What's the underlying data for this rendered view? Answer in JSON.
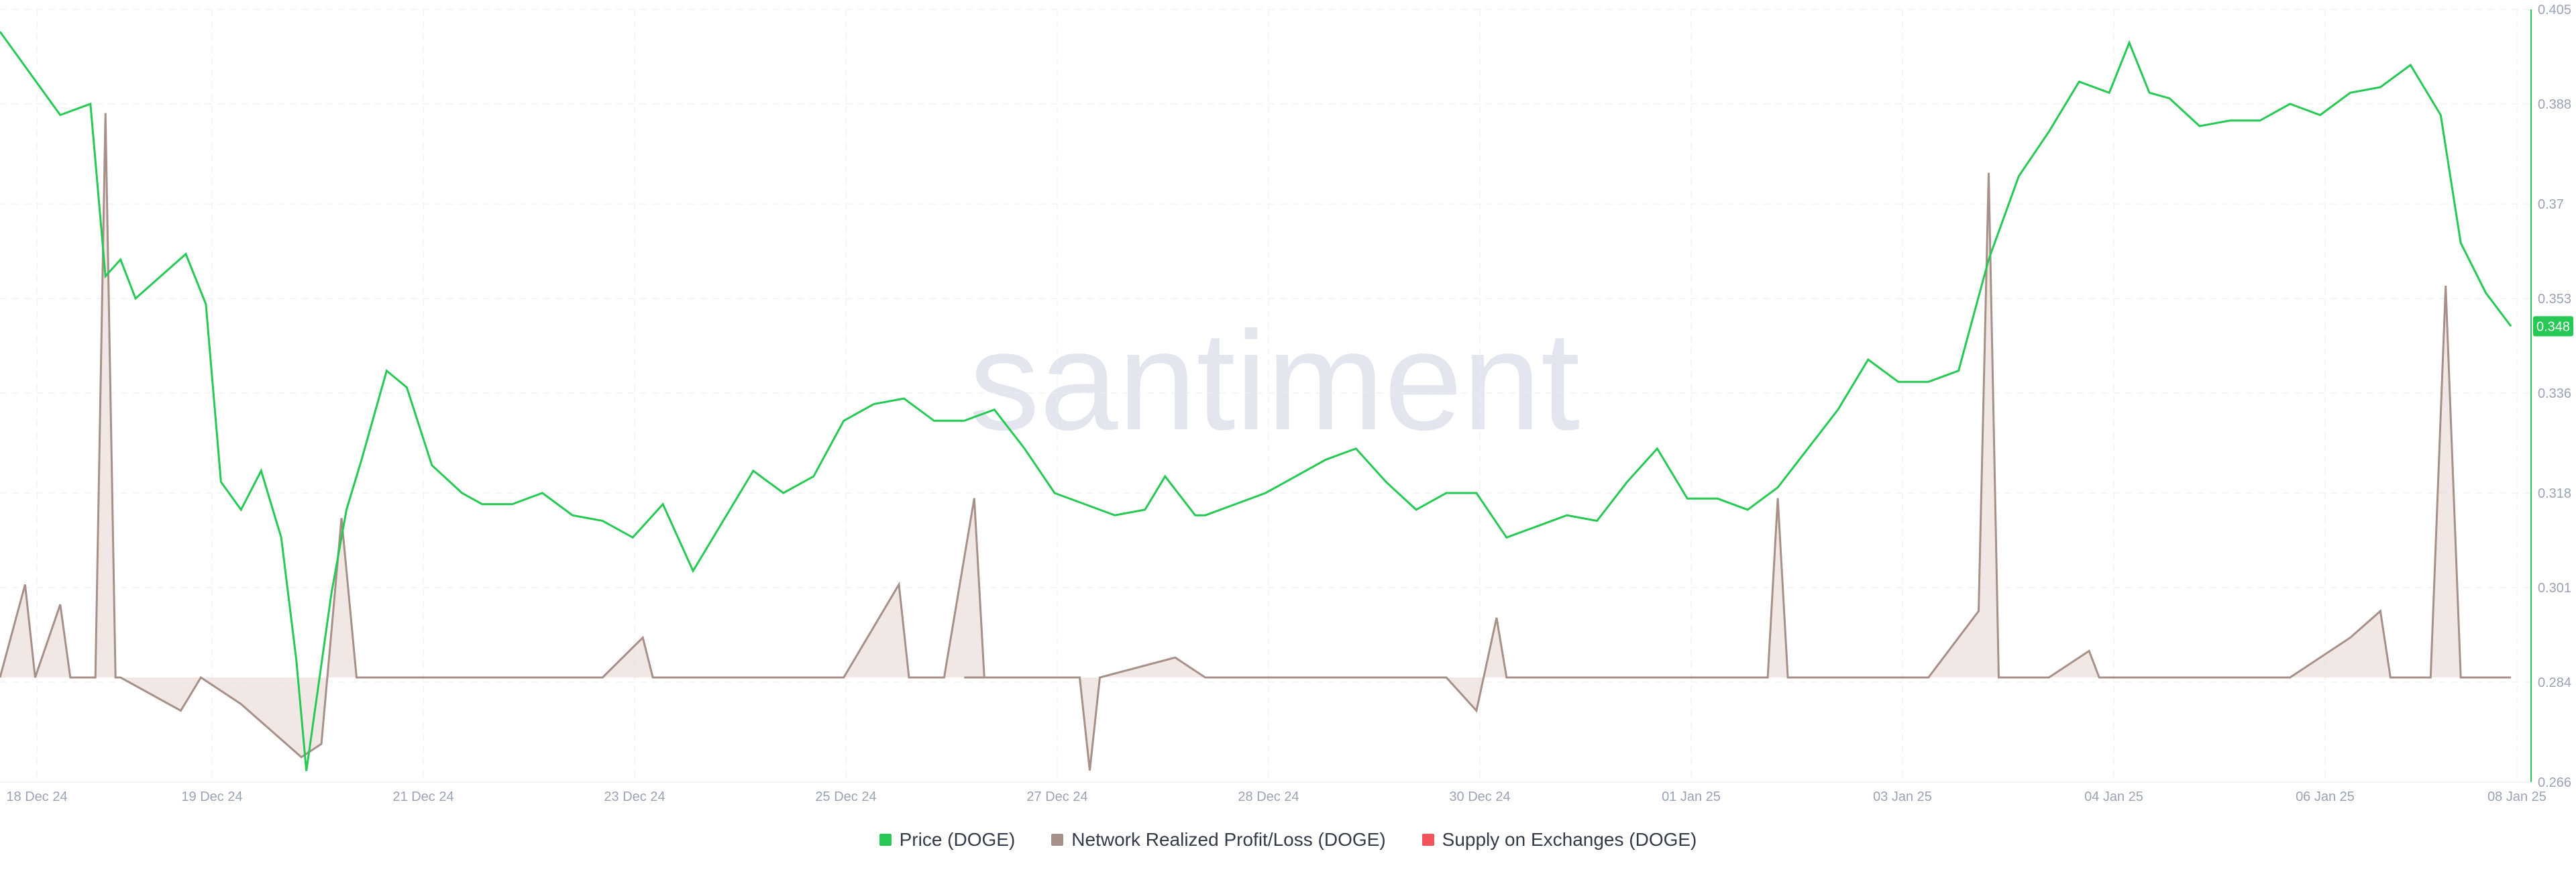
{
  "watermark": "santiment",
  "chart_data": {
    "type": "line",
    "x_range": [
      "2024-12-18",
      "2025-01-08"
    ],
    "x_tick_labels": [
      "18 Dec 24",
      "19 Dec 24",
      "21 Dec 24",
      "23 Dec 24",
      "25 Dec 24",
      "27 Dec 24",
      "28 Dec 24",
      "30 Dec 24",
      "01 Jan 25",
      "03 Jan 25",
      "04 Jan 25",
      "06 Jan 25",
      "08 Jan 25"
    ],
    "y_tick_labels": [
      "0.405",
      "0.388",
      "0.37",
      "0.353",
      "0.336",
      "0.318",
      "0.301",
      "0.284",
      "0.266"
    ],
    "ylim": [
      0.266,
      0.405
    ],
    "grid": true,
    "legend_position": "bottom-center",
    "current_value": "0.348",
    "series": [
      {
        "name": "Price (DOGE)",
        "color": "#26c953",
        "axis": "right",
        "points": [
          [
            "2024-12-18",
            0.401
          ],
          [
            "2024-12-18T12:00",
            0.386
          ],
          [
            "2024-12-18T18:00",
            0.388
          ],
          [
            "2024-12-18T21:00",
            0.357
          ],
          [
            "2024-12-19",
            0.36
          ],
          [
            "2024-12-19T03:00",
            0.353
          ],
          [
            "2024-12-19T08:00",
            0.357
          ],
          [
            "2024-12-19T13:00",
            0.361
          ],
          [
            "2024-12-19T17:00",
            0.352
          ],
          [
            "2024-12-19T20:00",
            0.32
          ],
          [
            "2024-12-20",
            0.315
          ],
          [
            "2024-12-20T04:00",
            0.322
          ],
          [
            "2024-12-20T08:00",
            0.31
          ],
          [
            "2024-12-20T11:00",
            0.288
          ],
          [
            "2024-12-20T13:00",
            0.268
          ],
          [
            "2024-12-20T18:00",
            0.3
          ],
          [
            "2024-12-20T21:00",
            0.315
          ],
          [
            "2024-12-21",
            0.324
          ],
          [
            "2024-12-21T05:00",
            0.34
          ],
          [
            "2024-12-21T09:00",
            0.337
          ],
          [
            "2024-12-21T14:00",
            0.323
          ],
          [
            "2024-12-21T20:00",
            0.318
          ],
          [
            "2024-12-22",
            0.316
          ],
          [
            "2024-12-22T06:00",
            0.316
          ],
          [
            "2024-12-22T12:00",
            0.318
          ],
          [
            "2024-12-22T18:00",
            0.314
          ],
          [
            "2024-12-23",
            0.313
          ],
          [
            "2024-12-23T06:00",
            0.31
          ],
          [
            "2024-12-23T12:00",
            0.316
          ],
          [
            "2024-12-23T18:00",
            0.304
          ],
          [
            "2024-12-24",
            0.313
          ],
          [
            "2024-12-24T06:00",
            0.322
          ],
          [
            "2024-12-24T12:00",
            0.318
          ],
          [
            "2024-12-24T18:00",
            0.321
          ],
          [
            "2024-12-25",
            0.331
          ],
          [
            "2024-12-25T06:00",
            0.334
          ],
          [
            "2024-12-25T12:00",
            0.335
          ],
          [
            "2024-12-25T18:00",
            0.331
          ],
          [
            "2024-12-26",
            0.331
          ],
          [
            "2024-12-26T06:00",
            0.333
          ],
          [
            "2024-12-26T12:00",
            0.326
          ],
          [
            "2024-12-26T18:00",
            0.318
          ],
          [
            "2024-12-27",
            0.316
          ],
          [
            "2024-12-27T06:00",
            0.314
          ],
          [
            "2024-12-27T12:00",
            0.315
          ],
          [
            "2024-12-27T16:00",
            0.321
          ],
          [
            "2024-12-27T22:00",
            0.314
          ],
          [
            "2024-12-28",
            0.314
          ],
          [
            "2024-12-28T06:00",
            0.316
          ],
          [
            "2024-12-28T12:00",
            0.318
          ],
          [
            "2024-12-28T18:00",
            0.321
          ],
          [
            "2024-12-29",
            0.324
          ],
          [
            "2024-12-29T06:00",
            0.326
          ],
          [
            "2024-12-29T12:00",
            0.32
          ],
          [
            "2024-12-29T18:00",
            0.315
          ],
          [
            "2024-12-30",
            0.318
          ],
          [
            "2024-12-30T06:00",
            0.318
          ],
          [
            "2024-12-30T12:00",
            0.31
          ],
          [
            "2024-12-30T18:00",
            0.312
          ],
          [
            "2024-12-31",
            0.314
          ],
          [
            "2024-12-31T06:00",
            0.313
          ],
          [
            "2024-12-31T12:00",
            0.32
          ],
          [
            "2024-12-31T18:00",
            0.326
          ],
          [
            "2025-01-01",
            0.317
          ],
          [
            "2025-01-01T06:00",
            0.317
          ],
          [
            "2025-01-01T12:00",
            0.315
          ],
          [
            "2025-01-01T18:00",
            0.319
          ],
          [
            "2025-01-02",
            0.326
          ],
          [
            "2025-01-02T06:00",
            0.333
          ],
          [
            "2025-01-02T12:00",
            0.342
          ],
          [
            "2025-01-02T18:00",
            0.338
          ],
          [
            "2025-01-03",
            0.338
          ],
          [
            "2025-01-03T06:00",
            0.34
          ],
          [
            "2025-01-03T12:00",
            0.36
          ],
          [
            "2025-01-03T18:00",
            0.375
          ],
          [
            "2025-01-04",
            0.383
          ],
          [
            "2025-01-04T06:00",
            0.392
          ],
          [
            "2025-01-04T12:00",
            0.39
          ],
          [
            "2025-01-04T16:00",
            0.399
          ],
          [
            "2025-01-04T20:00",
            0.39
          ],
          [
            "2025-01-05",
            0.389
          ],
          [
            "2025-01-05T06:00",
            0.384
          ],
          [
            "2025-01-05T12:00",
            0.385
          ],
          [
            "2025-01-05T18:00",
            0.385
          ],
          [
            "2025-01-06",
            0.388
          ],
          [
            "2025-01-06T06:00",
            0.386
          ],
          [
            "2025-01-06T12:00",
            0.39
          ],
          [
            "2025-01-06T18:00",
            0.391
          ],
          [
            "2025-01-07",
            0.395
          ],
          [
            "2025-01-07T06:00",
            0.386
          ],
          [
            "2025-01-07T10:00",
            0.363
          ],
          [
            "2025-01-07T15:00",
            0.354
          ],
          [
            "2025-01-07T20:00",
            0.348
          ]
        ]
      },
      {
        "name": "Network Realized Profit/Loss (DOGE)",
        "color": "#a69088",
        "axis": "secondary",
        "baseline": 0,
        "points": [
          [
            "2024-12-18",
            0
          ],
          [
            "2024-12-18T05:00",
            0.14
          ],
          [
            "2024-12-18T07:00",
            0
          ],
          [
            "2024-12-18T12:00",
            0.11
          ],
          [
            "2024-12-18T14:00",
            0
          ],
          [
            "2024-12-18T19:00",
            0
          ],
          [
            "2024-12-18T21:00",
            0.85
          ],
          [
            "2024-12-18T23:00",
            0
          ],
          [
            "2024-12-19",
            0
          ],
          [
            "2024-12-19T12:00",
            -0.05
          ],
          [
            "2024-12-19T16:00",
            0
          ],
          [
            "2024-12-20",
            -0.04
          ],
          [
            "2024-12-20T12:00",
            -0.12
          ],
          [
            "2024-12-20T16:00",
            -0.1
          ],
          [
            "2024-12-20T20:00",
            0.24
          ],
          [
            "2024-12-20T23:00",
            0
          ],
          [
            "2024-12-21",
            0
          ],
          [
            "2024-12-23",
            0
          ],
          [
            "2024-12-23T08:00",
            0.06
          ],
          [
            "2024-12-23T10:00",
            0
          ],
          [
            "2024-12-25",
            0
          ],
          [
            "2024-12-25T11:00",
            0.14
          ],
          [
            "2024-12-25T13:00",
            0
          ],
          [
            "2024-12-25T20:00",
            0
          ],
          [
            "2024-12-26T02:00",
            0.27
          ],
          [
            "2024-12-26T04:00",
            0
          ],
          [
            "2024-12-26",
            0
          ],
          [
            "2024-12-26T23:00",
            0
          ],
          [
            "2024-12-27T01:00",
            -0.14
          ],
          [
            "2024-12-27T03:00",
            0
          ],
          [
            "2024-12-27T18:00",
            0.03
          ],
          [
            "2024-12-28",
            0
          ],
          [
            "2024-12-30",
            0
          ],
          [
            "2024-12-30T06:00",
            -0.05
          ],
          [
            "2024-12-30T10:00",
            0.09
          ],
          [
            "2024-12-30T12:00",
            0
          ],
          [
            "2025-01-01",
            0
          ],
          [
            "2025-01-01T16:00",
            0
          ],
          [
            "2025-01-01T18:00",
            0.27
          ],
          [
            "2025-01-01T20:00",
            0
          ],
          [
            "2025-01-03",
            0
          ],
          [
            "2025-01-03T10:00",
            0.1
          ],
          [
            "2025-01-03T12:00",
            0.76
          ],
          [
            "2025-01-03T14:00",
            0
          ],
          [
            "2025-01-04",
            0
          ],
          [
            "2025-01-04T08:00",
            0.04
          ],
          [
            "2025-01-04T10:00",
            0
          ],
          [
            "2025-01-06",
            0
          ],
          [
            "2025-01-06T12:00",
            0.06
          ],
          [
            "2025-01-06T18:00",
            0.1
          ],
          [
            "2025-01-06T20:00",
            0
          ],
          [
            "2025-01-07T04:00",
            0
          ],
          [
            "2025-01-07T07:00",
            0.59
          ],
          [
            "2025-01-07T10:00",
            0
          ],
          [
            "2025-01-07T20:00",
            0
          ]
        ]
      },
      {
        "name": "Supply on Exchanges (DOGE)",
        "color": "#f2545b",
        "points": []
      }
    ]
  }
}
